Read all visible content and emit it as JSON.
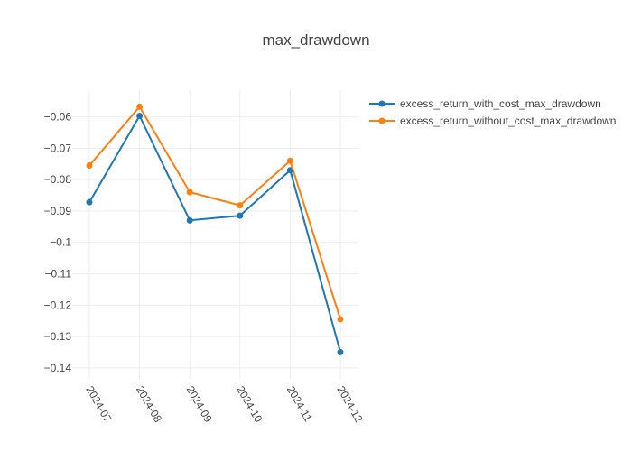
{
  "chart_data": {
    "type": "line",
    "title": "max_drawdown",
    "xlabel": "",
    "ylabel": "",
    "x": [
      "2024-07",
      "2024-08",
      "2024-09",
      "2024-10",
      "2024-11",
      "2024-12"
    ],
    "ylim": [
      -0.1435,
      -0.0515
    ],
    "yticks": [
      -0.06,
      -0.07,
      -0.08,
      -0.09,
      -0.1,
      -0.11,
      -0.12,
      -0.13,
      -0.14
    ],
    "ytick_labels": [
      "−0.06",
      "−0.07",
      "−0.08",
      "−0.09",
      "−0.1",
      "−0.11",
      "−0.12",
      "−0.13",
      "−0.14"
    ],
    "grid": true,
    "legend_position": "top-right",
    "series": [
      {
        "name": "excess_return_with_cost_max_drawdown",
        "color": "#1f77b4",
        "values": [
          -0.0872,
          -0.0597,
          -0.093,
          -0.0915,
          -0.077,
          -0.135
        ]
      },
      {
        "name": "excess_return_without_cost_max_drawdown",
        "color": "#ff7f0e",
        "values": [
          -0.0755,
          -0.0568,
          -0.084,
          -0.0882,
          -0.074,
          -0.1245
        ]
      }
    ]
  }
}
